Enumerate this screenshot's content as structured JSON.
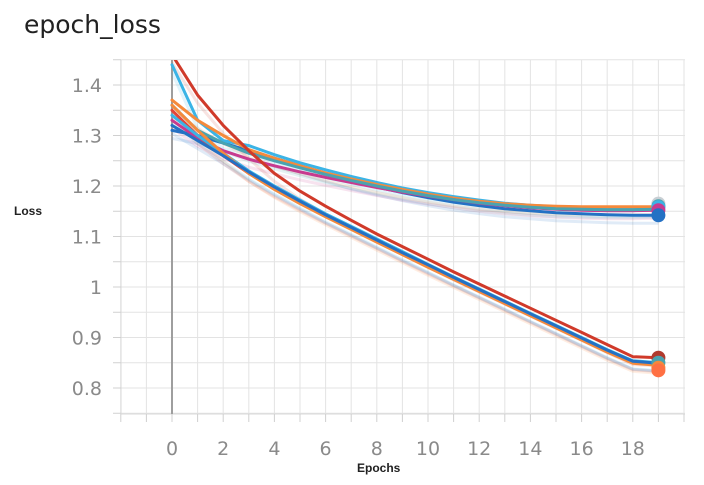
{
  "chart_data": {
    "type": "line",
    "title": "epoch_loss",
    "xlabel": "Epochs",
    "ylabel": "Loss",
    "xlim": [
      -2,
      20
    ],
    "ylim": [
      0.75,
      1.45
    ],
    "grid": true,
    "x_ticks": [
      0,
      2,
      4,
      6,
      8,
      10,
      12,
      14,
      16,
      18
    ],
    "x_tick_labels": [
      "0",
      "2",
      "4",
      "6",
      "8",
      "10",
      "12",
      "14",
      "16",
      "18"
    ],
    "y_ticks": [
      0.8,
      0.9,
      1.0,
      1.1,
      1.2,
      1.3,
      1.4
    ],
    "y_tick_labels": [
      "0.8",
      "0.9",
      "1",
      "1.1",
      "1.2",
      "1.3",
      "1.4"
    ],
    "x": [
      0,
      1,
      2,
      3,
      4,
      5,
      6,
      7,
      8,
      9,
      10,
      11,
      12,
      13,
      14,
      15,
      16,
      17,
      18,
      19
    ],
    "series": [
      {
        "color": "#2471c4",
        "values": [
          1.31,
          1.3,
          1.285,
          1.27,
          1.255,
          1.24,
          1.225,
          1.21,
          1.198,
          1.187,
          1.177,
          1.168,
          1.161,
          1.155,
          1.151,
          1.147,
          1.145,
          1.143,
          1.142,
          1.142
        ]
      },
      {
        "color": "#3bb4e6",
        "values": [
          1.44,
          1.33,
          1.29,
          1.28,
          1.262,
          1.246,
          1.232,
          1.219,
          1.207,
          1.196,
          1.187,
          1.179,
          1.172,
          1.166,
          1.162,
          1.159,
          1.157,
          1.156,
          1.156,
          1.156
        ]
      },
      {
        "color": "#f58a3c",
        "values": [
          1.37,
          1.33,
          1.3,
          1.272,
          1.255,
          1.24,
          1.226,
          1.214,
          1.203,
          1.193,
          1.184,
          1.176,
          1.17,
          1.165,
          1.162,
          1.16,
          1.159,
          1.159,
          1.159,
          1.159
        ]
      },
      {
        "color": "#c73b8f",
        "values": [
          1.33,
          1.295,
          1.27,
          1.253,
          1.24,
          1.228,
          1.217,
          1.207,
          1.197,
          1.188,
          1.18,
          1.173,
          1.166,
          1.161,
          1.157,
          1.154,
          1.152,
          1.151,
          1.151,
          1.152
        ]
      },
      {
        "color": "#4aa3b0",
        "values": [
          1.36,
          1.31,
          1.285,
          1.265,
          1.25,
          1.236,
          1.223,
          1.211,
          1.2,
          1.19,
          1.181,
          1.173,
          1.167,
          1.162,
          1.158,
          1.155,
          1.154,
          1.153,
          1.153,
          1.154
        ]
      },
      {
        "color": "#d03a2a",
        "values": [
          1.46,
          1.38,
          1.32,
          1.27,
          1.225,
          1.19,
          1.16,
          1.132,
          1.105,
          1.08,
          1.055,
          1.03,
          1.006,
          0.982,
          0.958,
          0.934,
          0.91,
          0.886,
          0.862,
          0.86
        ]
      },
      {
        "color": "#e2463a",
        "values": [
          1.35,
          1.3,
          1.26,
          1.225,
          1.195,
          1.168,
          1.142,
          1.117,
          1.092,
          1.067,
          1.042,
          1.018,
          0.994,
          0.97,
          0.946,
          0.922,
          0.898,
          0.874,
          0.852,
          0.848
        ]
      },
      {
        "color": "#3bb4e6",
        "values": [
          1.34,
          1.3,
          1.265,
          1.23,
          1.2,
          1.172,
          1.145,
          1.12,
          1.095,
          1.07,
          1.045,
          1.02,
          0.996,
          0.972,
          0.948,
          0.924,
          0.9,
          0.876,
          0.854,
          0.85
        ]
      },
      {
        "color": "#f58a3c",
        "values": [
          1.36,
          1.31,
          1.265,
          1.225,
          1.193,
          1.165,
          1.139,
          1.114,
          1.089,
          1.064,
          1.039,
          1.015,
          0.991,
          0.967,
          0.943,
          0.919,
          0.895,
          0.871,
          0.849,
          0.845
        ]
      },
      {
        "color": "#2471c4",
        "values": [
          1.32,
          1.29,
          1.26,
          1.228,
          1.198,
          1.17,
          1.143,
          1.118,
          1.093,
          1.068,
          1.044,
          1.019,
          0.995,
          0.971,
          0.947,
          0.923,
          0.899,
          0.875,
          0.853,
          0.849
        ]
      }
    ],
    "end_markers": [
      {
        "color": "#c9cfd4",
        "value": 1.165
      },
      {
        "color": "#4aa3b0",
        "value": 1.16
      },
      {
        "color": "#3bb4e6",
        "value": 1.158
      },
      {
        "color": "#c73b8f",
        "value": 1.152
      },
      {
        "color": "#2471c4",
        "value": 1.142
      },
      {
        "color": "#b03a2e",
        "value": 0.86
      },
      {
        "color": "#4aa3b0",
        "value": 0.85
      },
      {
        "color": "#f58a3c",
        "value": 0.84
      },
      {
        "color": "#ff7043",
        "value": 0.835
      }
    ]
  }
}
